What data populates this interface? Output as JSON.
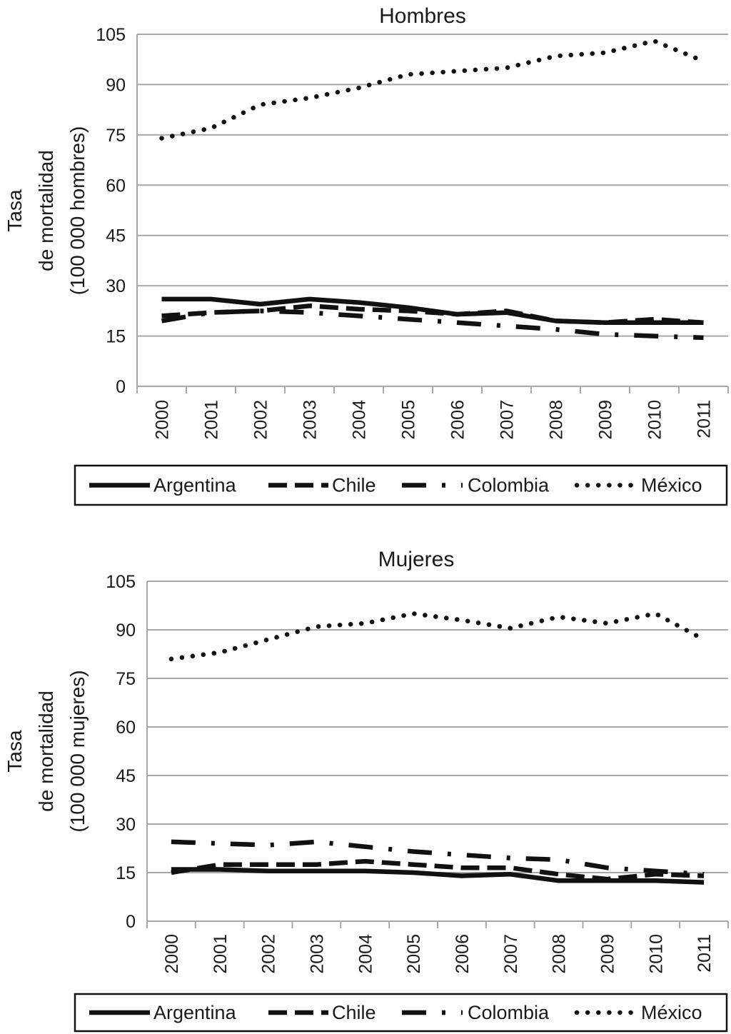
{
  "chart_data": [
    {
      "type": "line",
      "title": "Hombres",
      "ylabel": [
        "Tasa",
        "de mortalidad",
        "(100 000 hombres)"
      ],
      "xlabel": "",
      "categories": [
        "2000",
        "2001",
        "2002",
        "2003",
        "2004",
        "2005",
        "2006",
        "2007",
        "2008",
        "2009",
        "2010",
        "2011"
      ],
      "yticks": [
        "0",
        "15",
        "30",
        "45",
        "60",
        "75",
        "90",
        "105"
      ],
      "ylim": [
        0,
        105
      ],
      "grid": true,
      "legend_position": "bottom",
      "series": [
        {
          "name": "Argentina",
          "style": "solid",
          "values": [
            26,
            26,
            24.5,
            26,
            25,
            23.5,
            21.5,
            22,
            19.5,
            19,
            19,
            19
          ]
        },
        {
          "name": "Chile",
          "style": "dashed",
          "values": [
            21,
            22,
            22.5,
            24,
            23,
            22.5,
            21.5,
            22.5,
            19.5,
            19,
            20,
            19
          ]
        },
        {
          "name": "Colombia",
          "style": "dash-dot",
          "values": [
            19.5,
            22,
            22.5,
            22,
            21,
            20,
            19,
            18,
            17,
            15.5,
            15,
            14.5
          ]
        },
        {
          "name": "México",
          "style": "dotted",
          "values": [
            74,
            77,
            84,
            86,
            89,
            93,
            94,
            95,
            98.5,
            99.5,
            103,
            97
          ]
        }
      ]
    },
    {
      "type": "line",
      "title": "Mujeres",
      "ylabel": [
        "Tasa",
        "de mortalidad",
        "(100 000 mujeres)"
      ],
      "xlabel": "",
      "categories": [
        "2000",
        "2001",
        "2002",
        "2003",
        "2004",
        "2005",
        "2006",
        "2007",
        "2008",
        "2009",
        "2010",
        "2011"
      ],
      "yticks": [
        "0",
        "15",
        "30",
        "45",
        "60",
        "75",
        "90",
        "105"
      ],
      "ylim": [
        0,
        105
      ],
      "grid": true,
      "legend_position": "bottom",
      "series": [
        {
          "name": "Argentina",
          "style": "solid",
          "values": [
            16,
            16,
            15.5,
            15.5,
            15.5,
            15,
            14,
            14.5,
            12.5,
            12.5,
            12.5,
            12
          ]
        },
        {
          "name": "Chile",
          "style": "dashed",
          "values": [
            15,
            17.5,
            17.5,
            17.5,
            18.5,
            17.5,
            16.5,
            16.5,
            14.5,
            13,
            14.5,
            14
          ]
        },
        {
          "name": "Colombia",
          "style": "dash-dot",
          "values": [
            24.5,
            24,
            23.5,
            24.5,
            23,
            21.5,
            20.5,
            19.5,
            19,
            16.5,
            15.5,
            14.5
          ]
        },
        {
          "name": "México",
          "style": "dotted",
          "values": [
            81,
            83,
            87,
            91,
            92,
            95,
            93,
            90.5,
            94,
            92,
            95,
            87
          ]
        }
      ]
    }
  ]
}
